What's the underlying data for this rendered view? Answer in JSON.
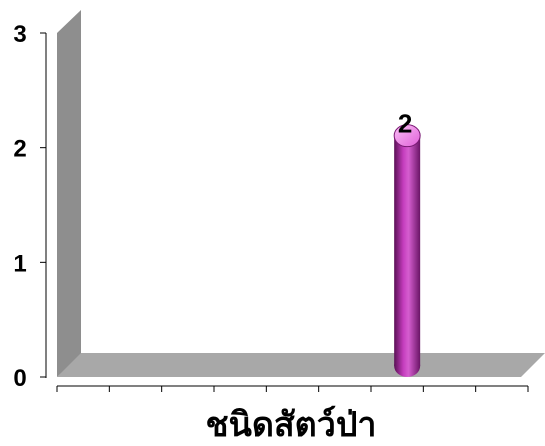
{
  "chart_data": {
    "type": "bar",
    "style": "3d-cylinder",
    "categories": [
      "",
      "",
      "",
      "",
      "",
      "",
      "",
      "",
      ""
    ],
    "values": [
      0,
      0,
      0,
      0,
      0,
      0,
      2,
      0,
      0
    ],
    "data_labels": [
      "",
      "",
      "",
      "",
      "",
      "",
      "2",
      "",
      ""
    ],
    "title": "",
    "xlabel": "ชนิดสัตว์ป่า",
    "ylabel": "",
    "ylim": [
      0,
      3
    ],
    "yticks": [
      "0",
      "1",
      "2",
      "3"
    ],
    "grid": false,
    "legend": "none",
    "colors": {
      "bar": "#a0279a",
      "bar_top": "#f080e8",
      "wall": "#8c8c8c",
      "floor": "#a6a6a6"
    }
  }
}
